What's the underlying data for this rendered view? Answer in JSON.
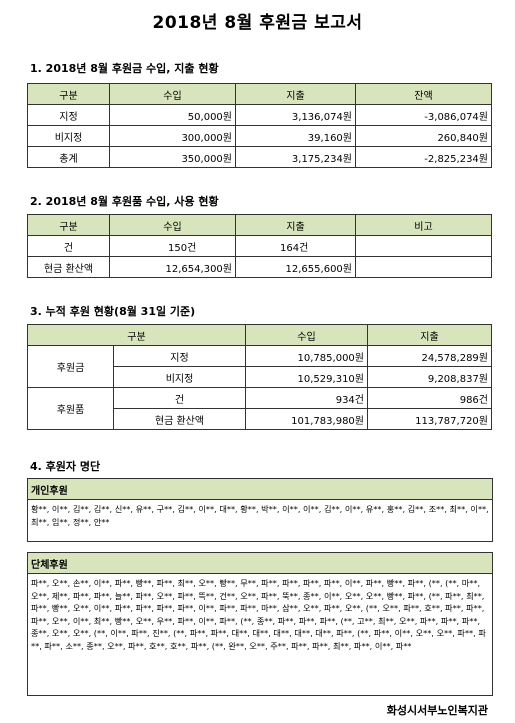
{
  "title": "2018년 8월 후원금 보고서",
  "section1": {
    "heading": "1. 2018년 8월 후원금 수입, 지출 현황",
    "headers": [
      "구분",
      "수입",
      "지출",
      "잔액"
    ],
    "rows": [
      [
        "지정",
        "50,000원",
        "3,136,074원",
        "-3,086,074원"
      ],
      [
        "비지정",
        "300,000원",
        "39,160원",
        "260,840원"
      ],
      [
        "총계",
        "350,000원",
        "3,175,234원",
        "-2,825,234원"
      ]
    ]
  },
  "section2": {
    "heading": "2. 2018년 8월 후원품 수입, 사용 현황",
    "headers": [
      "구분",
      "수입",
      "지출",
      "비고"
    ],
    "rows": [
      [
        "건",
        "150건",
        "164건",
        ""
      ],
      [
        "현금 환산액",
        "12,654,300원",
        "12,655,600원",
        ""
      ]
    ]
  },
  "section3": {
    "heading": "3. 누적 후원 현황(8월 31일 기준)",
    "headers": [
      "구분",
      "수입",
      "지출"
    ],
    "groups": [
      {
        "name": "후원금",
        "rows": [
          [
            "지정",
            "10,785,000원",
            "24,578,289원"
          ],
          [
            "비지정",
            "10,529,310원",
            "9,208,837원"
          ]
        ]
      },
      {
        "name": "후원품",
        "rows": [
          [
            "건",
            "934건",
            "986건"
          ],
          [
            "현금 환산액",
            "101,783,980원",
            "113,787,720원"
          ]
        ]
      }
    ]
  },
  "section4": {
    "heading": "4. 후원자 명단",
    "individual_label": "개인후원",
    "individual_text": "황**, 이**, 김**, 김**, 신**, 유**, 구**, 김**, 이**, 대**, 황**, 박**, 이**, 이**, 김**, 이**, 유**, 홍**, 김**, 조**, 최**, 이**, 최**, 임**, 정**, 안**",
    "group_label": "단체후원",
    "group_text": "파**, 오**, 손**, 이**, 파**, 빵**, 파**, 최**, 오**, 빵**, 무**, 파**, 파**, 파**, 파**, 이**, 파**, 빵**, 파**, (**, (**, 마**, 오**, 제**, 파**, 파**, 늘**, 파**, 오**, 파**, 뜩**, 건**, 오**, 파**, 뚝**, 종**, 이**, 오**, 오**, 빵**, 파**, (**, 파**, 최**, 파**, 빵**, 오**, 이**, 파**, 파**, 파**, 파**, 이**, 파**, 파**, 마**, 삼**, 오**, 파**, 오**, (**, 오**, 파**, 호**, 파**, 파**, 파**, 오**, 이**, 최**, 빵**, 오**, 우**, 파**, 이**, 파**, (**, 종**, 파**, 파**, 파**, (**, 고**, 최**, 오**, 파**, 파**, 파**, 종**, 오**, 오**, (**, 이**, 파**, 진**, (**, 파**, 파**, 대**, 대**, 대**, 대**, 대**, 파**, (**, 파**, 이**, 오**, 오**, 파**, 파**, 파**, 소**, 종**, 오**, 파**, 호**, 호**, 파**, (**, 완**, 오**, 주**, 파**, 파**, 최**, 파**, 이**, 파**"
  },
  "footer": "화성시서부노인복지관"
}
